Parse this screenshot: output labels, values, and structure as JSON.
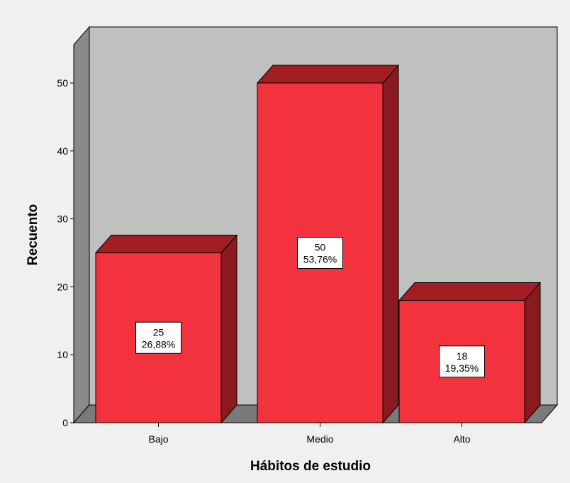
{
  "chart_data": {
    "type": "bar",
    "categories": [
      "Bajo",
      "Medio",
      "Alto"
    ],
    "values": [
      25,
      50,
      18
    ],
    "percent_labels": [
      "26,88%",
      "53,76%",
      "19,35%"
    ],
    "xlabel": "Hábitos de estudio",
    "ylabel": "Recuento",
    "ylim": [
      0,
      50
    ],
    "yticks": [
      0,
      10,
      20,
      30,
      40,
      50
    ],
    "grid": false,
    "legend": "none",
    "colors": {
      "bar_front": "#f2323c",
      "bar_top": "#a21e22",
      "bar_side": "#8b1a1e",
      "wall_back": "#c0c0c0",
      "wall_side": "#8a8a8a",
      "floor": "#7a7a7a",
      "page_bg": "#f0f0f0"
    }
  }
}
